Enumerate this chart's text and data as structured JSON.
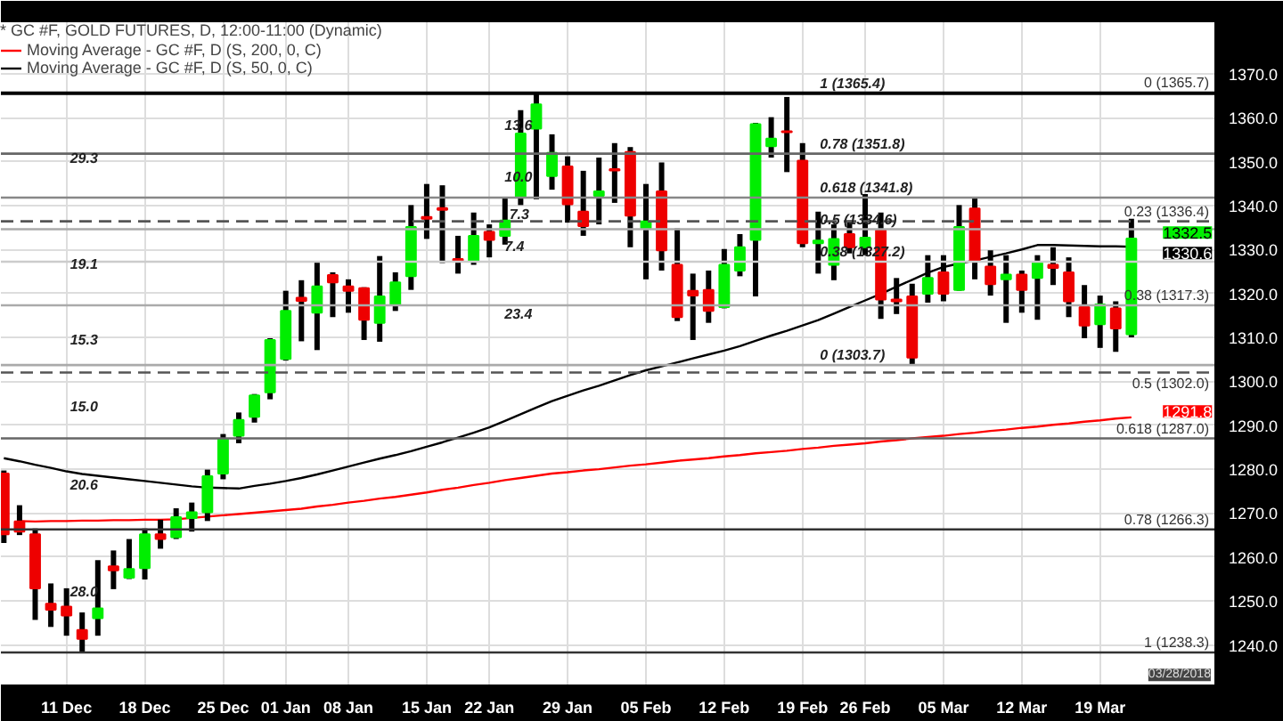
{
  "chart_data": {
    "type": "candlestick",
    "title": "* GC #F, GOLD FUTURES, D, 12:00-11:00 (Dynamic)",
    "categories": [
      null,
      null,
      null,
      null,
      "11 Dec",
      null,
      null,
      null,
      null,
      "18 Dec",
      null,
      null,
      null,
      null,
      "25 Dec",
      null,
      null,
      null,
      "01 Jan",
      null,
      null,
      null,
      "08 Jan",
      null,
      null,
      null,
      null,
      "15 Jan",
      null,
      null,
      null,
      "22 Jan",
      null,
      null,
      null,
      null,
      "29 Jan",
      null,
      null,
      null,
      null,
      "05 Feb",
      null,
      null,
      null,
      null,
      "12 Feb",
      null,
      null,
      null,
      null,
      "19 Feb",
      null,
      null,
      null,
      "26 Feb",
      null,
      null,
      null,
      null,
      "05 Mar",
      null,
      null,
      null,
      null,
      "12 Mar",
      null,
      null,
      null,
      null,
      "19 Mar",
      null,
      null
    ],
    "ohlc": [
      [
        1279.0,
        1279.7,
        1263.2,
        1265.2
      ],
      [
        1268.1,
        1271.8,
        1265.0,
        1265.8
      ],
      [
        1265.2,
        1266.5,
        1245.7,
        1252.9
      ],
      [
        1249.4,
        1254.0,
        1244.1,
        1248.0
      ],
      [
        1248.7,
        1252.9,
        1242.1,
        1246.7
      ],
      [
        1243.4,
        1247.4,
        1238.3,
        1241.4
      ],
      [
        1246.1,
        1259.3,
        1242.1,
        1248.3
      ],
      [
        1257.9,
        1261.5,
        1252.7,
        1257.0
      ],
      [
        1255.3,
        1264.1,
        1255.0,
        1257.3
      ],
      [
        1257.5,
        1266.5,
        1254.9,
        1265.2
      ],
      [
        1265.2,
        1268.5,
        1261.9,
        1264.1
      ],
      [
        1264.5,
        1271.1,
        1264.1,
        1269.1
      ],
      [
        1268.9,
        1272.4,
        1265.8,
        1270.2
      ],
      [
        1270.2,
        1279.9,
        1268.2,
        1278.4
      ],
      [
        1279.0,
        1288.0,
        1277.7,
        1286.9
      ],
      [
        1287.6,
        1292.9,
        1285.9,
        1291.2
      ],
      [
        1291.9,
        1297.1,
        1290.6,
        1296.8
      ],
      [
        1297.5,
        1309.8,
        1295.9,
        1309.4
      ],
      [
        1305.1,
        1320.6,
        1304.7,
        1316.0
      ],
      [
        1319.0,
        1323.0,
        1309.1,
        1318.3
      ],
      [
        1315.6,
        1327.4,
        1307.1,
        1321.6
      ],
      [
        1324.2,
        1324.8,
        1314.6,
        1322.5
      ],
      [
        1321.6,
        1323.2,
        1315.6,
        1320.6
      ],
      [
        1321.2,
        1321.4,
        1309.4,
        1314.0
      ],
      [
        1313.3,
        1328.5,
        1309.0,
        1319.3
      ],
      [
        1317.5,
        1324.8,
        1316.0,
        1322.5
      ],
      [
        1323.9,
        1340.1,
        1320.8,
        1335.1
      ],
      [
        1337.4,
        1344.9,
        1332.4,
        1337.0
      ],
      [
        1339.4,
        1344.6,
        1326.9,
        1339.0
      ],
      [
        1327.8,
        1333.1,
        1324.5,
        1327.4
      ],
      [
        1327.2,
        1338.4,
        1326.5,
        1333.1
      ],
      [
        1334.0,
        1335.7,
        1328.2,
        1332.2
      ],
      [
        1333.1,
        1341.7,
        1331.1,
        1336.6
      ],
      [
        1341.9,
        1361.7,
        1340.1,
        1356.4
      ],
      [
        1357.5,
        1365.4,
        1341.4,
        1363.0
      ],
      [
        1346.7,
        1356.2,
        1343.6,
        1352.0
      ],
      [
        1348.9,
        1351.2,
        1336.1,
        1340.3
      ],
      [
        1338.6,
        1347.9,
        1333.1,
        1335.3
      ],
      [
        1342.2,
        1350.9,
        1335.7,
        1343.2
      ],
      [
        1348.3,
        1354.2,
        1340.6,
        1348.0
      ],
      [
        1352.2,
        1353.3,
        1330.5,
        1337.7
      ],
      [
        1334.8,
        1344.9,
        1323.2,
        1336.4
      ],
      [
        1343.2,
        1349.8,
        1325.2,
        1329.8
      ],
      [
        1326.5,
        1334.8,
        1313.7,
        1314.6
      ],
      [
        1320.6,
        1324.5,
        1309.4,
        1319.5
      ],
      [
        1320.8,
        1325.2,
        1313.3,
        1316.0
      ],
      [
        1316.9,
        1330.1,
        1316.6,
        1326.5
      ],
      [
        1325.2,
        1333.5,
        1323.9,
        1330.5
      ],
      [
        1332.2,
        1358.8,
        1319.3,
        1358.5
      ],
      [
        1353.5,
        1360.1,
        1350.9,
        1355.2
      ],
      [
        1356.9,
        1364.7,
        1347.6,
        1356.7
      ],
      [
        1350.2,
        1354.2,
        1330.5,
        1331.4
      ],
      [
        1331.4,
        1338.6,
        1324.5,
        1332.0
      ],
      [
        1326.5,
        1335.7,
        1323.0,
        1332.4
      ],
      [
        1333.5,
        1336.6,
        1329.1,
        1330.5
      ],
      [
        1330.5,
        1342.6,
        1328.7,
        1332.7
      ],
      [
        1334.4,
        1338.4,
        1314.2,
        1318.6
      ],
      [
        1318.6,
        1323.5,
        1315.3,
        1318.2
      ],
      [
        1319.3,
        1322.2,
        1303.7,
        1305.4
      ],
      [
        1319.9,
        1328.7,
        1317.9,
        1323.5
      ],
      [
        1324.8,
        1328.7,
        1318.2,
        1319.9
      ],
      [
        1320.8,
        1340.1,
        1320.6,
        1335.1
      ],
      [
        1339.3,
        1341.9,
        1323.2,
        1327.4
      ],
      [
        1326.1,
        1329.8,
        1319.5,
        1322.1
      ],
      [
        1323.2,
        1328.7,
        1313.3,
        1324.3
      ],
      [
        1324.3,
        1325.2,
        1315.6,
        1320.8
      ],
      [
        1323.5,
        1328.7,
        1314.0,
        1327.2
      ],
      [
        1326.5,
        1330.5,
        1321.9,
        1325.8
      ],
      [
        1324.8,
        1328.2,
        1314.6,
        1318.2
      ],
      [
        1316.9,
        1321.9,
        1309.8,
        1312.7
      ],
      [
        1313.0,
        1319.5,
        1307.6,
        1317.5
      ],
      [
        1316.6,
        1318.2,
        1306.7,
        1312.0
      ],
      [
        1310.7,
        1337.0,
        1310.0,
        1332.5
      ]
    ],
    "colors": [
      "#ee0000",
      "#ee0000",
      "#ee0000",
      "#ee0000",
      "#ee0000",
      "#ee0000",
      "#00ee00",
      "#ee0000",
      "#00ee00",
      "#00ee00",
      "#ee0000",
      "#00ee00",
      "#00ee00",
      "#00ee00",
      "#00ee00",
      "#00ee00",
      "#00ee00",
      "#00ee00",
      "#00ee00",
      "#ee0000",
      "#00ee00",
      "#ee0000",
      "#ee0000",
      "#ee0000",
      "#00ee00",
      "#00ee00",
      "#00ee00",
      "#ee0000",
      "#ee0000",
      "#ee0000",
      "#00ee00",
      "#ee0000",
      "#00ee00",
      "#00ee00",
      "#00ee00",
      "#00ee00",
      "#ee0000",
      "#ee0000",
      "#00ee00",
      "#ee0000",
      "#ee0000",
      "#00ee00",
      "#ee0000",
      "#ee0000",
      "#ee0000",
      "#ee0000",
      "#00ee00",
      "#00ee00",
      "#00ee00",
      "#00ee00",
      "#ee0000",
      "#ee0000",
      "#00ee00",
      "#00ee00",
      "#ee0000",
      "#00ee00",
      "#ee0000",
      "#ee0000",
      "#ee0000",
      "#00ee00",
      "#ee0000",
      "#00ee00",
      "#ee0000",
      "#ee0000",
      "#00ee00",
      "#ee0000",
      "#00ee00",
      "#ee0000",
      "#ee0000",
      "#ee0000",
      "#00ee00",
      "#ee0000",
      "#00ee00"
    ],
    "series": [
      {
        "name": "Moving Average - GC #F, D (S, 200, 0, C)",
        "color": "#ff0000",
        "type": "line",
        "values": [
          null,
          1268.2,
          1268.1,
          1268.2,
          1268.2,
          1268.3,
          1268.3,
          1268.4,
          1268.4,
          1268.5,
          1268.5,
          1268.6,
          1268.9,
          1269.2,
          1269.5,
          1269.8,
          1270.1,
          1270.4,
          1270.7,
          1271.0,
          1271.5,
          1271.9,
          1272.4,
          1272.8,
          1273.3,
          1273.7,
          1274.2,
          1274.7,
          1275.3,
          1275.8,
          1276.4,
          1276.9,
          1277.5,
          1278.0,
          1278.5,
          1279.0,
          1279.3,
          1279.7,
          1280.0,
          1280.4,
          1280.8,
          1281.1,
          1281.5,
          1281.9,
          1282.2,
          1282.5,
          1282.9,
          1283.2,
          1283.6,
          1283.9,
          1284.2,
          1284.6,
          1284.9,
          1285.3,
          1285.6,
          1285.9,
          1286.3,
          1286.6,
          1287.0,
          1287.3,
          1287.6,
          1288.0,
          1288.3,
          1288.7,
          1289.0,
          1289.4,
          1289.7,
          1290.1,
          1290.4,
          1290.8,
          1291.1,
          1291.5,
          1291.8
        ]
      },
      {
        "name": "Moving Average - GC #F, D (S, 50, 0, C)",
        "color": "#000000",
        "type": "line",
        "values": [
          1282.5,
          1281.8,
          1281.0,
          1280.3,
          1279.5,
          1278.9,
          1278.5,
          1278.1,
          1277.7,
          1277.3,
          1276.9,
          1276.5,
          1276.1,
          1275.8,
          1275.7,
          1275.6,
          1276.2,
          1276.7,
          1277.3,
          1278.0,
          1278.8,
          1279.7,
          1280.6,
          1281.5,
          1282.4,
          1283.2,
          1284.1,
          1285.1,
          1286.1,
          1287.2,
          1288.3,
          1289.5,
          1291.0,
          1292.5,
          1294.0,
          1295.5,
          1296.7,
          1297.9,
          1299.0,
          1300.2,
          1301.4,
          1302.5,
          1303.4,
          1304.3,
          1305.2,
          1306.1,
          1307.0,
          1308.0,
          1309.2,
          1310.4,
          1311.5,
          1312.7,
          1313.9,
          1315.4,
          1316.9,
          1318.4,
          1319.9,
          1321.5,
          1323.1,
          1324.7,
          1326.0,
          1326.8,
          1327.5,
          1328.3,
          1329.1,
          1330.0,
          1331.0,
          1331.0,
          1330.9,
          1330.8,
          1330.7,
          1330.7,
          1330.6
        ]
      }
    ],
    "ylim": [
      1231.0,
      1381.7
    ],
    "yticks": [
      {
        "value": 1240,
        "label": "1240.0"
      },
      {
        "value": 1250,
        "label": "1250.0"
      },
      {
        "value": 1260,
        "label": "1260.0"
      },
      {
        "value": 1270,
        "label": "1270.0"
      },
      {
        "value": 1280,
        "label": "1280.0"
      },
      {
        "value": 1290,
        "label": "1290.0"
      },
      {
        "value": 1300,
        "label": "1300.0"
      },
      {
        "value": 1310,
        "label": "1310.0"
      },
      {
        "value": 1320,
        "label": "1320.0"
      },
      {
        "value": 1330,
        "label": "1330.0"
      },
      {
        "value": 1340,
        "label": "1340.0"
      },
      {
        "value": 1350,
        "label": "1350.0"
      },
      {
        "value": 1360,
        "label": "1360.0"
      },
      {
        "value": 1370,
        "label": "1370.0"
      }
    ],
    "grid": true,
    "legend": "top left",
    "ref_lines": [
      {
        "axis": "y",
        "value": 1365.7,
        "label": "0 (1365.7)",
        "color": "#000000",
        "line_style": "solid"
      },
      {
        "axis": "y",
        "value": 1336.4,
        "label": "0.23 (1336.4)",
        "color": "#555555",
        "line_style": "dashed"
      },
      {
        "axis": "y",
        "value": 1317.3,
        "label": "0.38 (1317.3)",
        "color": "#aaaaaa",
        "line_style": "solid"
      },
      {
        "axis": "y",
        "value": 1302.0,
        "label": "0.5 (1302.0)",
        "color": "#555555",
        "line_style": "dashed"
      },
      {
        "axis": "y",
        "value": 1287.0,
        "label": "0.618 (1287.0)",
        "color": "#666666",
        "line_style": "solid"
      },
      {
        "axis": "y",
        "value": 1266.3,
        "label": "0.78 (1266.3)",
        "color": "#333333",
        "line_style": "solid"
      },
      {
        "axis": "y",
        "value": 1238.3,
        "label": "1 (1238.3)",
        "color": "#333333",
        "line_style": "solid"
      },
      {
        "axis": "y",
        "value": 1365.4,
        "color": "#000000",
        "line_style": "solid"
      },
      {
        "axis": "y",
        "value": 1351.8,
        "color": "#666666",
        "line_style": "solid"
      },
      {
        "axis": "y",
        "value": 1341.8,
        "color": "#888888",
        "line_style": "solid"
      },
      {
        "axis": "y",
        "value": 1334.6,
        "color": "#aaaaaa",
        "line_style": "solid"
      },
      {
        "axis": "y",
        "value": 1327.2,
        "color": "#cccccc",
        "line_style": "solid"
      },
      {
        "axis": "y",
        "value": 1303.7,
        "color": "#aaaaaa",
        "line_style": "solid"
      }
    ],
    "annotations": [
      {
        "text": "1 (1365.4)",
        "y": 1365.4
      },
      {
        "text": "0.78 (1351.8)",
        "y": 1351.8
      },
      {
        "text": "0.618 (1341.8)",
        "y": 1341.8
      },
      {
        "text": "0.5 (1334.6)",
        "y": 1334.6
      },
      {
        "text": "0.38 (1327.2)",
        "y": 1327.2
      },
      {
        "text": "0 (1303.7)",
        "y": 1303.7
      },
      "29.3",
      "19.1",
      "15.3",
      "15.0",
      "20.6",
      "28.0",
      "13.6",
      "10.0",
      "7.3",
      "7.4",
      "23.4",
      "1332.5",
      "1330.6",
      "1291.8",
      "03/28/2018"
    ]
  }
}
